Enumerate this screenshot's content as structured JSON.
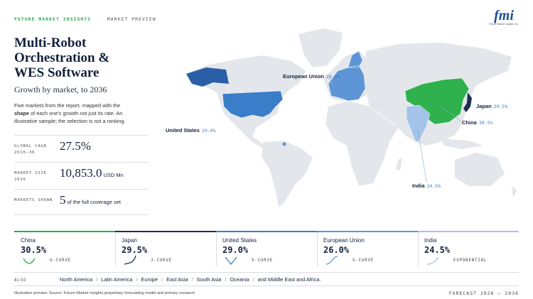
{
  "header": {
    "brand": "FUTURE MARKET INSIGHTS",
    "separator": "·",
    "section": "MARKET PREVIEW"
  },
  "logo": {
    "mark": "fmi",
    "caption": "Future Market Insights Inc."
  },
  "title": "Multi-Robot Orchestration & WES Software",
  "subtitle": "Growth by market, to 2036",
  "description": {
    "before": "Five markets from the report, mapped with the ",
    "emphasis": "shape",
    "after": " of each one's growth not just its rate. An illustrative sample; the selection is not a ranking."
  },
  "stats": [
    {
      "label": "GLOBAL CAGR 2026–36",
      "value": "27.5%"
    },
    {
      "label": "MARKET SIZE 2036",
      "value": "10,853.0",
      "unit": "USD Mn"
    },
    {
      "label": "MARKETS SHOWN",
      "value": "5",
      "unit": "of the full coverage set"
    }
  ],
  "map_labels": [
    {
      "name": "European Union",
      "value": "26.0%"
    },
    {
      "name": "United States",
      "value": "29.0%"
    },
    {
      "name": "Japan",
      "value": "29.5%"
    },
    {
      "name": "China",
      "value": "30.5%"
    },
    {
      "name": "India",
      "value": "24.5%"
    }
  ],
  "cards": [
    {
      "name": "China",
      "value": "30.5%",
      "curve": "U-CURVE",
      "color": "#2fa84a"
    },
    {
      "name": "Japan",
      "value": "29.5%",
      "curve": "J-CURVE",
      "color": "#1c2f55"
    },
    {
      "name": "United States",
      "value": "29.0%",
      "curve": "V-CURVE",
      "color": "#3a7dc9"
    },
    {
      "name": "European Union",
      "value": "26.0%",
      "curve": "S-CURVE",
      "color": "#5d95d6"
    },
    {
      "name": "India",
      "value": "24.5%",
      "curve": "EXPONENTIAL",
      "color": "#a3c3e8"
    }
  ],
  "also": {
    "label": "ALSO",
    "separator": "/",
    "regions": [
      "North America",
      "Latin America",
      "Europe",
      "East Asia",
      "South Asia",
      "Oceania",
      "and Middle East and Africa."
    ]
  },
  "footer": {
    "source": "Illustrative preview. Source: Future Market Insights proprietary forecasting model and primary research.",
    "forecast": "FORECAST 2026 – 2036"
  }
}
